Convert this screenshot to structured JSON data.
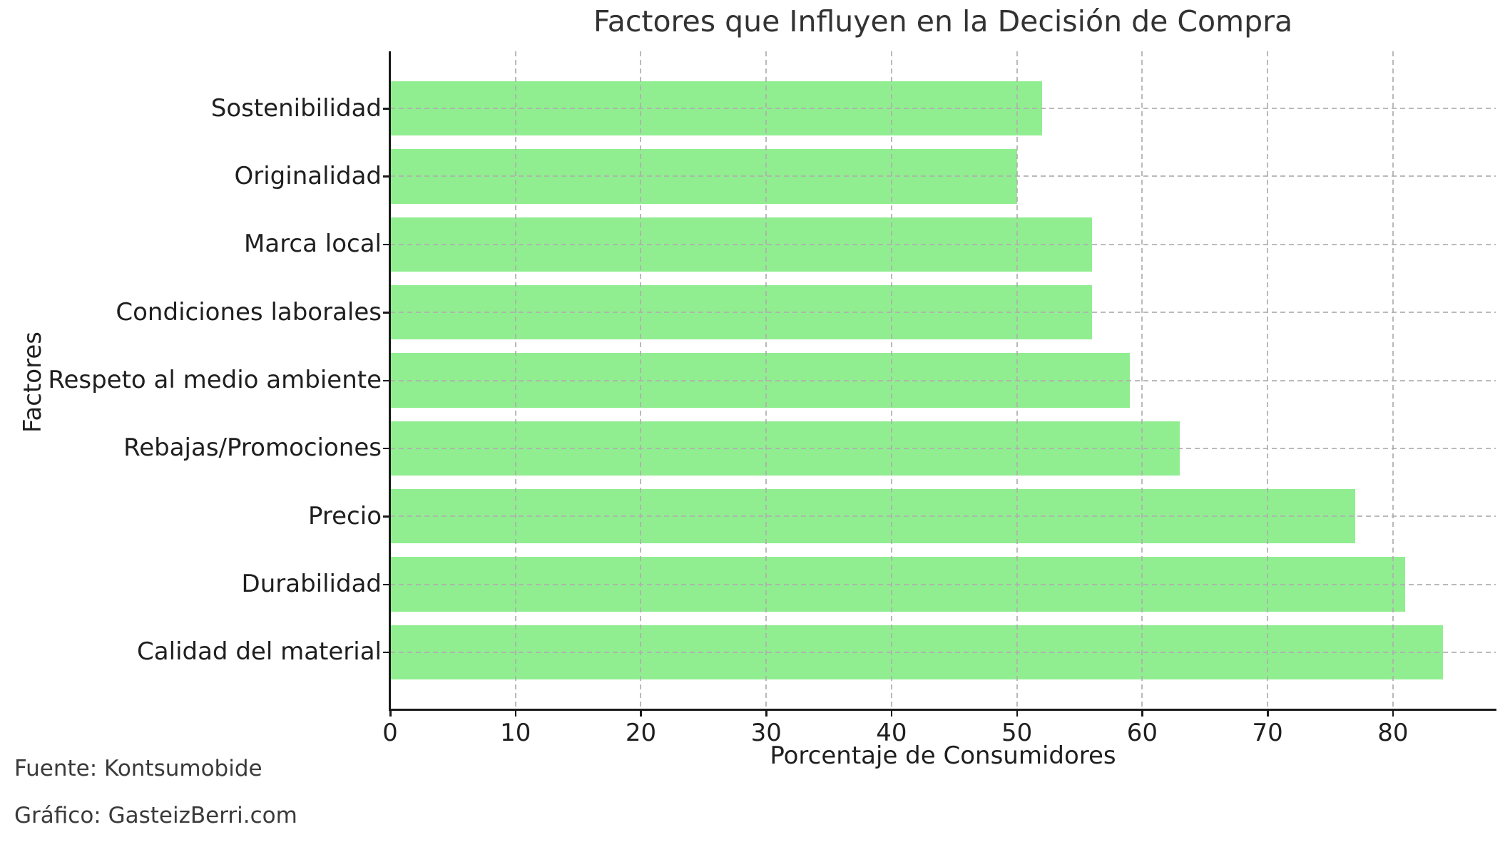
{
  "title": "Factores que Influyen en la Decisión de Compra",
  "footer": {
    "source": "Fuente: Kontsumobide",
    "credit": "Gráfico: GasteizBerri.com"
  },
  "chart_data": {
    "type": "bar",
    "orientation": "horizontal",
    "title": "Factores que Influyen en la Decisión de Compra",
    "xlabel": "Porcentaje de Consumidores",
    "ylabel": "Factores",
    "categories": [
      "Sostenibilidad",
      "Originalidad",
      "Marca local",
      "Condiciones laborales",
      "Respeto al medio ambiente",
      "Rebajas/Promociones",
      "Precio",
      "Durabilidad",
      "Calidad del material"
    ],
    "values": [
      52,
      50,
      56,
      56,
      59,
      63,
      77,
      81,
      84
    ],
    "xlim": [
      0,
      88.2
    ],
    "xticks": [
      0,
      10,
      20,
      30,
      40,
      50,
      60,
      70,
      80
    ],
    "bar_color": "#90EE90",
    "grid": {
      "style": "dashed",
      "axes": "both",
      "over_bars": true
    },
    "legend": "none",
    "note": "categories listed top-to-bottom as displayed"
  }
}
